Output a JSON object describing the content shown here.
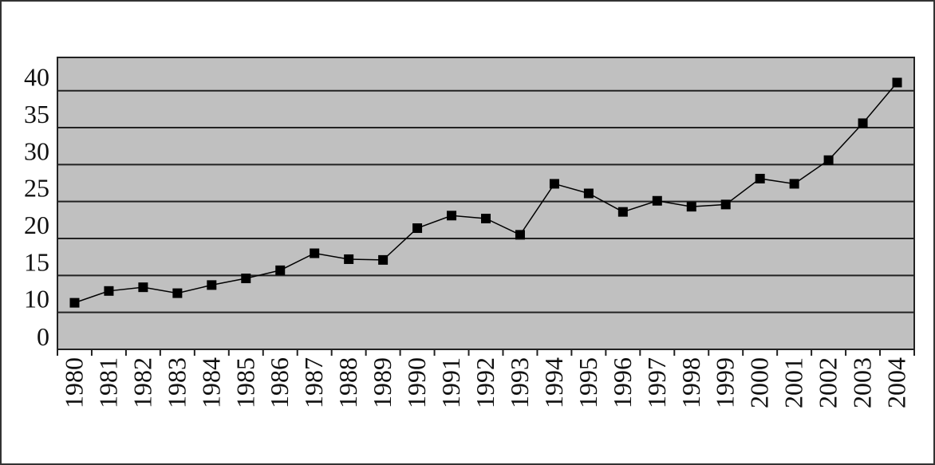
{
  "chart_data": {
    "type": "line",
    "categories": [
      "1980",
      "1981",
      "1982",
      "1983",
      "1984",
      "1985",
      "1986",
      "1987",
      "1988",
      "1989",
      "1990",
      "1991",
      "1992",
      "1993",
      "1994",
      "1995",
      "1996",
      "1997",
      "1998",
      "1999",
      "2000",
      "2001",
      "2002",
      "2003",
      "2004"
    ],
    "values": [
      11.3,
      12.9,
      13.4,
      12.6,
      13.7,
      14.6,
      15.7,
      18.0,
      17.2,
      17.1,
      21.4,
      23.1,
      22.7,
      20.5,
      27.4,
      26.1,
      23.6,
      25.1,
      24.3,
      24.6,
      28.1,
      27.4,
      30.6,
      35.6,
      41.1
    ],
    "color": "#000000",
    "ylim": [
      5,
      44.5
    ],
    "yticks": [
      10,
      15,
      20,
      25,
      30,
      35,
      40
    ],
    "y_axis_break_label": "0",
    "grid": true,
    "plot_background": "#c0c0c0"
  }
}
